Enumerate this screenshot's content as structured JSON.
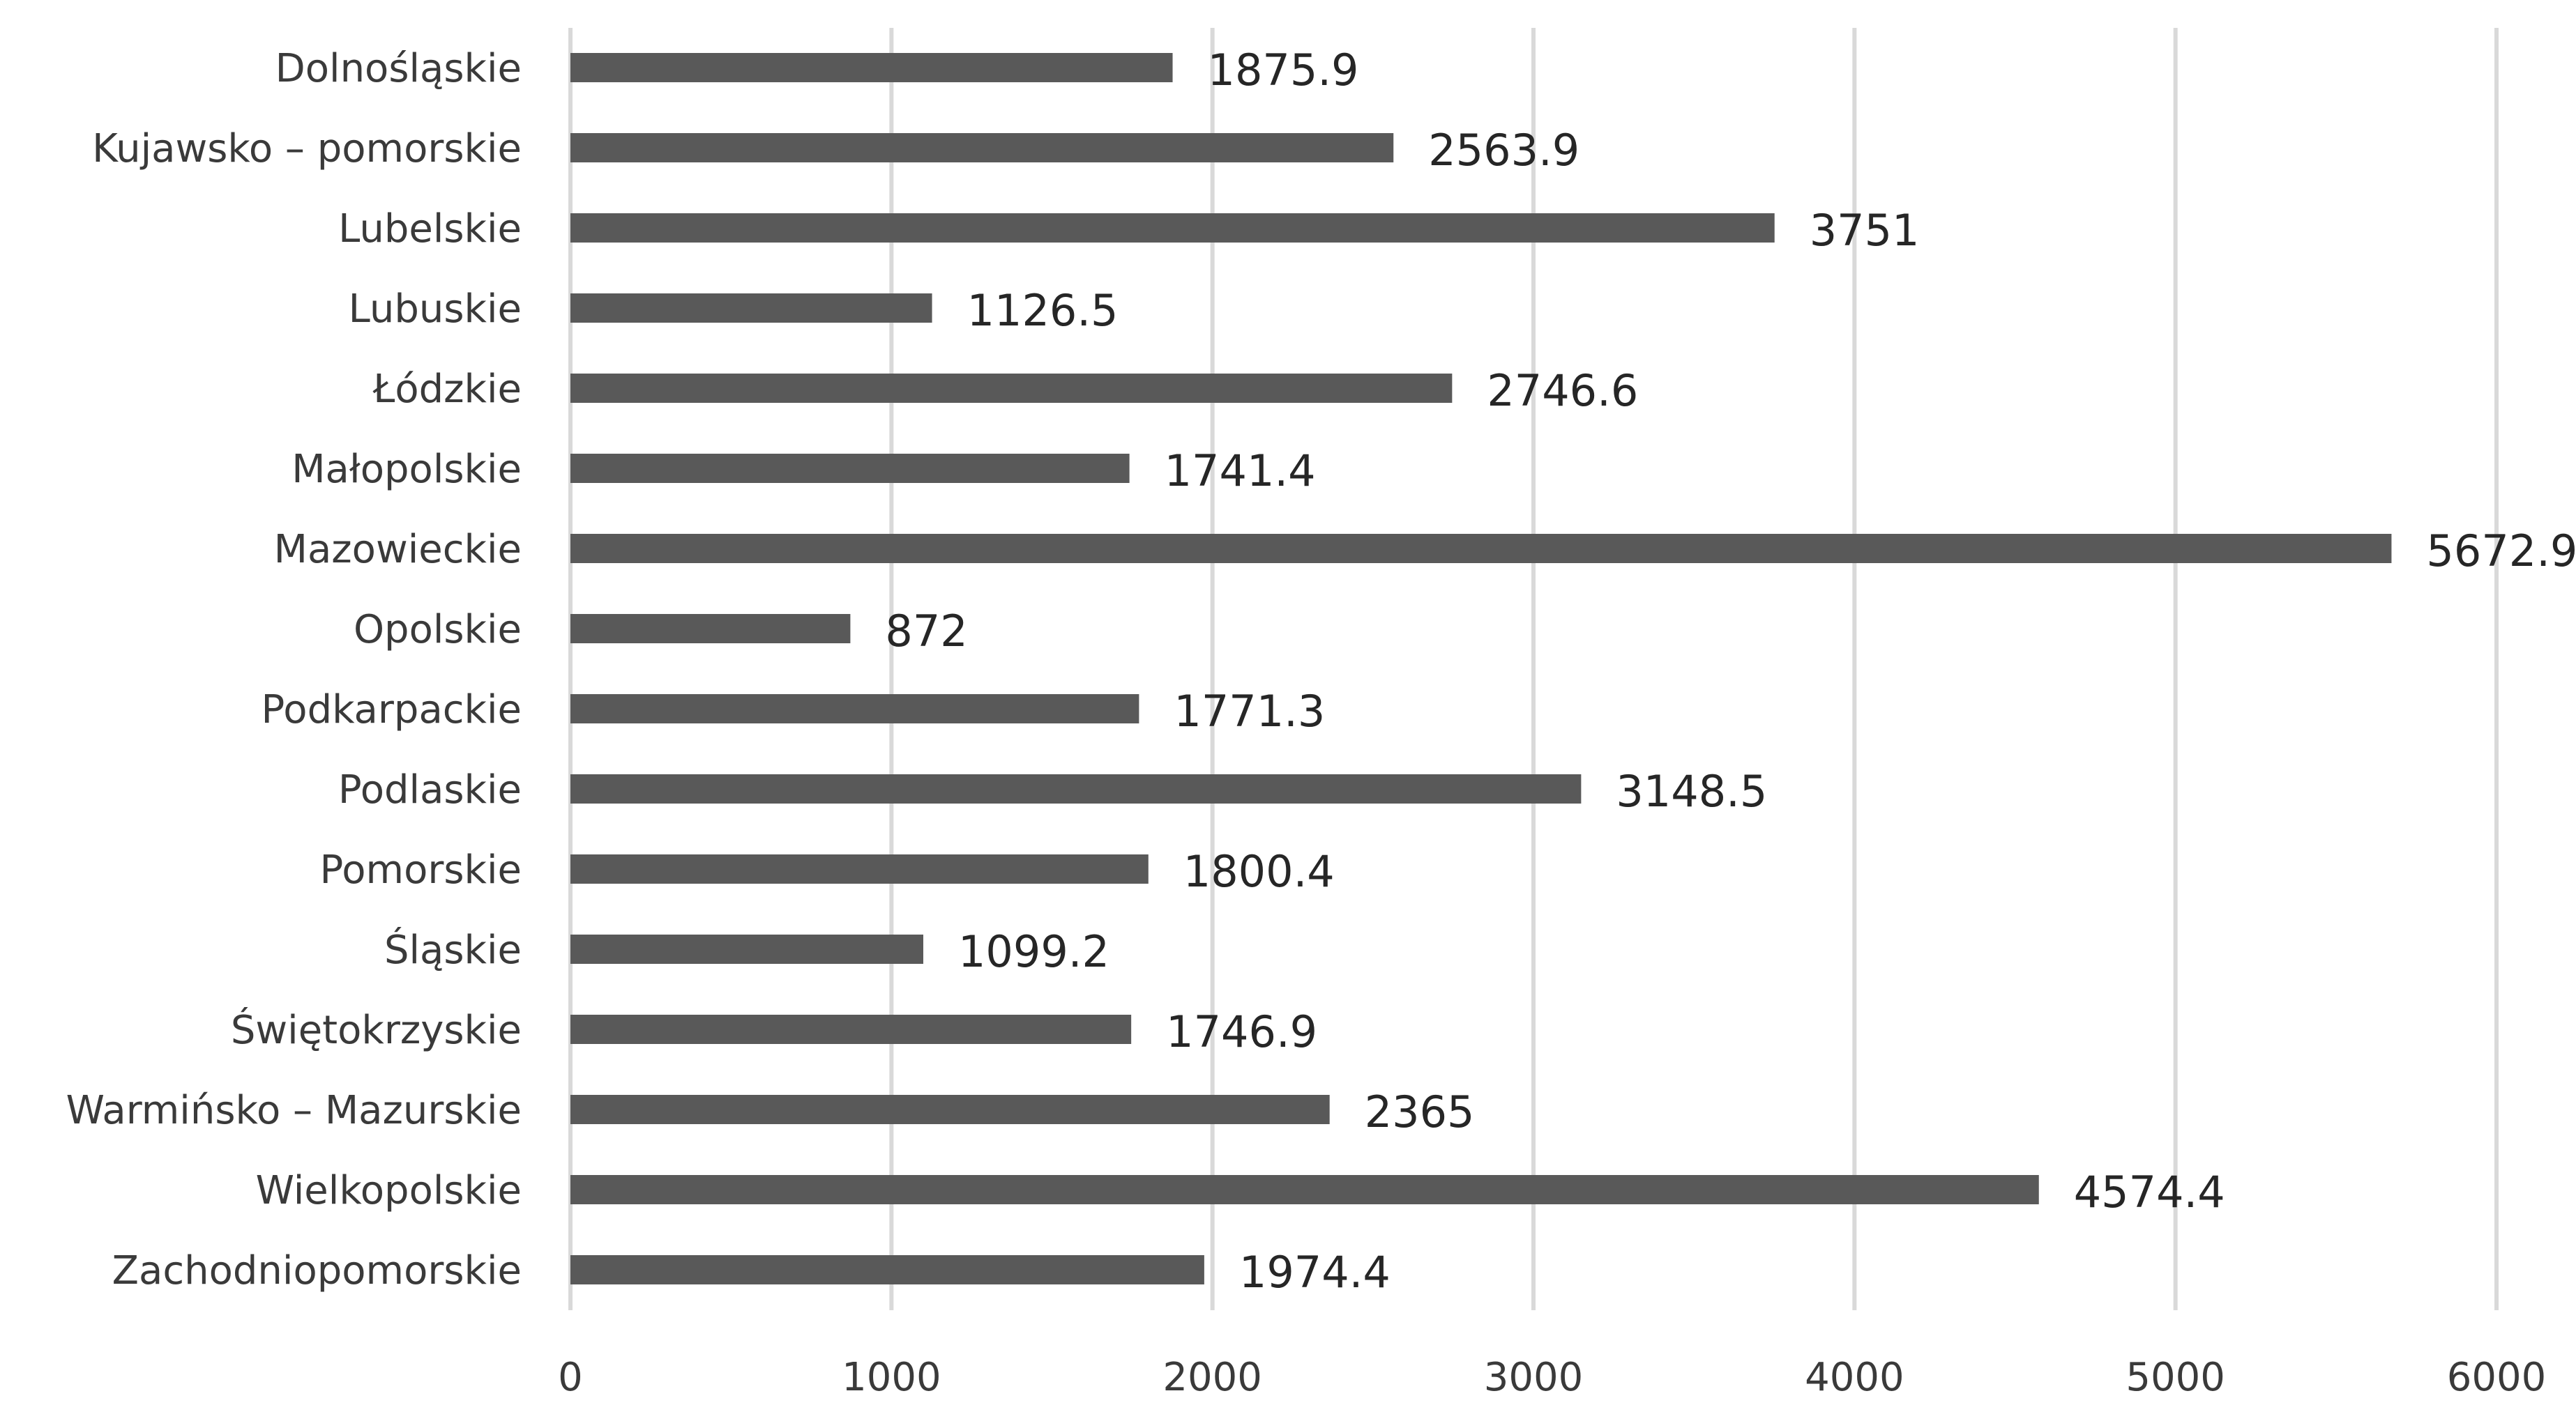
{
  "chart_data": {
    "type": "bar",
    "orientation": "horizontal",
    "title": "",
    "xlabel": "",
    "ylabel": "",
    "categories": [
      "Dolnośląskie",
      "Kujawsko – pomorskie",
      "Lubelskie",
      "Lubuskie",
      "Łódzkie",
      "Małopolskie",
      "Mazowieckie",
      "Opolskie",
      "Podkarpackie",
      "Podlaskie",
      "Pomorskie",
      "Śląskie",
      "Świętokrzyskie",
      "Warmińsko – Mazurskie",
      "Wielkopolskie",
      "Zachodniopomorskie"
    ],
    "values": [
      1875.9,
      2563.9,
      3751,
      1126.5,
      2746.6,
      1741.4,
      5672.9,
      872,
      1771.3,
      3148.5,
      1800.4,
      1099.2,
      1746.9,
      2365,
      4574.4,
      1974.4
    ],
    "value_labels": [
      "1875.9",
      "2563.9",
      "3751",
      "1126.5",
      "2746.6",
      "1741.4",
      "5672.9",
      "872",
      "1771.3",
      "3148.5",
      "1800.4",
      "1099.2",
      "1746.9",
      "2365",
      "4574.4",
      "1974.4"
    ],
    "xlim": [
      0,
      6000
    ],
    "xticks": [
      "0",
      "1000",
      "2000",
      "3000",
      "4000",
      "5000",
      "6000"
    ],
    "grid": "vertical",
    "legend": "none",
    "bar_color": "#595959",
    "grid_color": "#d9d9d9"
  }
}
